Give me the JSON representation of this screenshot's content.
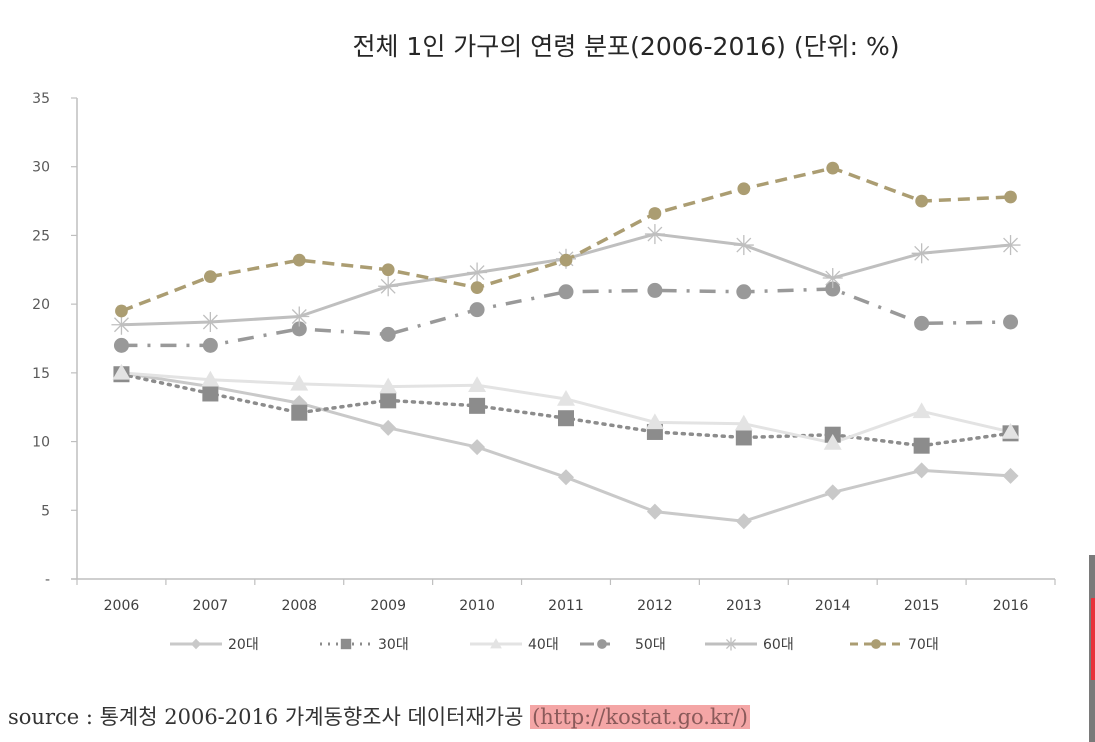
{
  "chart_data": {
    "type": "line",
    "title": "전체 1인 가구의 연령 분포(2006-2016) (단위: %)",
    "xlabel": "",
    "ylabel": "",
    "categories": [
      "2006",
      "2007",
      "2008",
      "2009",
      "2010",
      "2011",
      "2012",
      "2013",
      "2014",
      "2015",
      "2016"
    ],
    "ylim": [
      0,
      35
    ],
    "yticks": [
      0,
      5,
      10,
      15,
      20,
      25,
      30,
      35
    ],
    "ytick_labels": [
      "-",
      "5",
      "10",
      "15",
      "20",
      "25",
      "30",
      "35"
    ],
    "grid": false,
    "legend_position": "bottom",
    "series": [
      {
        "name": "20대",
        "color": "#c9c9c9",
        "dash": "solid",
        "marker": "diamond",
        "values": [
          15.0,
          14.0,
          12.8,
          11.0,
          9.6,
          7.4,
          4.9,
          4.2,
          6.3,
          7.9,
          7.5
        ]
      },
      {
        "name": "30대",
        "color": "#8c8c8c",
        "dash": "dotted",
        "marker": "square",
        "values": [
          14.9,
          13.5,
          12.1,
          13.0,
          12.6,
          11.7,
          10.7,
          10.3,
          10.5,
          9.7,
          10.6
        ]
      },
      {
        "name": "40대",
        "color": "#e3e3e3",
        "dash": "solid",
        "marker": "triangle",
        "values": [
          15.0,
          14.5,
          14.2,
          14.0,
          14.1,
          13.1,
          11.4,
          11.3,
          9.9,
          12.2,
          10.7
        ]
      },
      {
        "name": "50대",
        "color": "#999999",
        "dash": "dashdot",
        "marker": "circle",
        "values": [
          17.0,
          17.0,
          18.2,
          17.8,
          19.6,
          20.9,
          21.0,
          20.9,
          21.1,
          18.6,
          18.7
        ]
      },
      {
        "name": "60대",
        "color": "#bfbfbf",
        "dash": "solid",
        "marker": "star",
        "values": [
          18.5,
          18.7,
          19.1,
          21.3,
          22.3,
          23.3,
          25.1,
          24.3,
          21.9,
          23.7,
          24.3
        ]
      },
      {
        "name": "70대",
        "color": "#ab9d72",
        "dash": "dashed",
        "marker": "circle",
        "values": [
          19.5,
          22.0,
          23.2,
          22.5,
          21.2,
          23.2,
          26.6,
          28.4,
          29.9,
          27.5,
          27.8
        ]
      }
    ]
  },
  "source": {
    "text": "source : 통계청 2006-2016 가계동향조사 데이터재가공",
    "link": "(http://kostat.go.kr/)"
  }
}
